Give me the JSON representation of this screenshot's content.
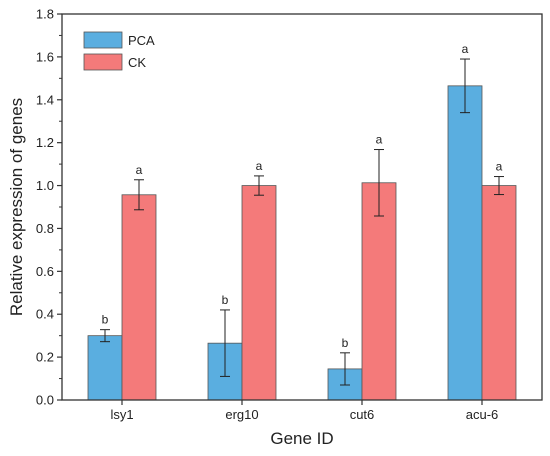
{
  "chart_data": {
    "type": "bar",
    "xlabel": "Gene ID",
    "ylabel": "Relative expression of genes",
    "ylim": [
      0,
      1.8
    ],
    "yticks": [
      "0.0",
      "0.2",
      "0.4",
      "0.6",
      "0.8",
      "1.0",
      "1.2",
      "1.4",
      "1.6",
      "1.8"
    ],
    "categories": [
      "lsy1",
      "erg10",
      "cut6",
      "acu-6"
    ],
    "legend_position": "top-left",
    "grid": false,
    "series": [
      {
        "name": "PCA",
        "color": "#5aaee0",
        "values": [
          0.3,
          0.265,
          0.145,
          1.465
        ],
        "errors": [
          0.028,
          0.155,
          0.075,
          0.125
        ],
        "labels": [
          "b",
          "b",
          "b",
          "a"
        ]
      },
      {
        "name": "CK",
        "color": "#f47a7a",
        "values": [
          0.957,
          1.0,
          1.013,
          1.0
        ],
        "errors": [
          0.07,
          0.045,
          0.155,
          0.042
        ],
        "labels": [
          "a",
          "a",
          "a",
          "a"
        ]
      }
    ]
  }
}
